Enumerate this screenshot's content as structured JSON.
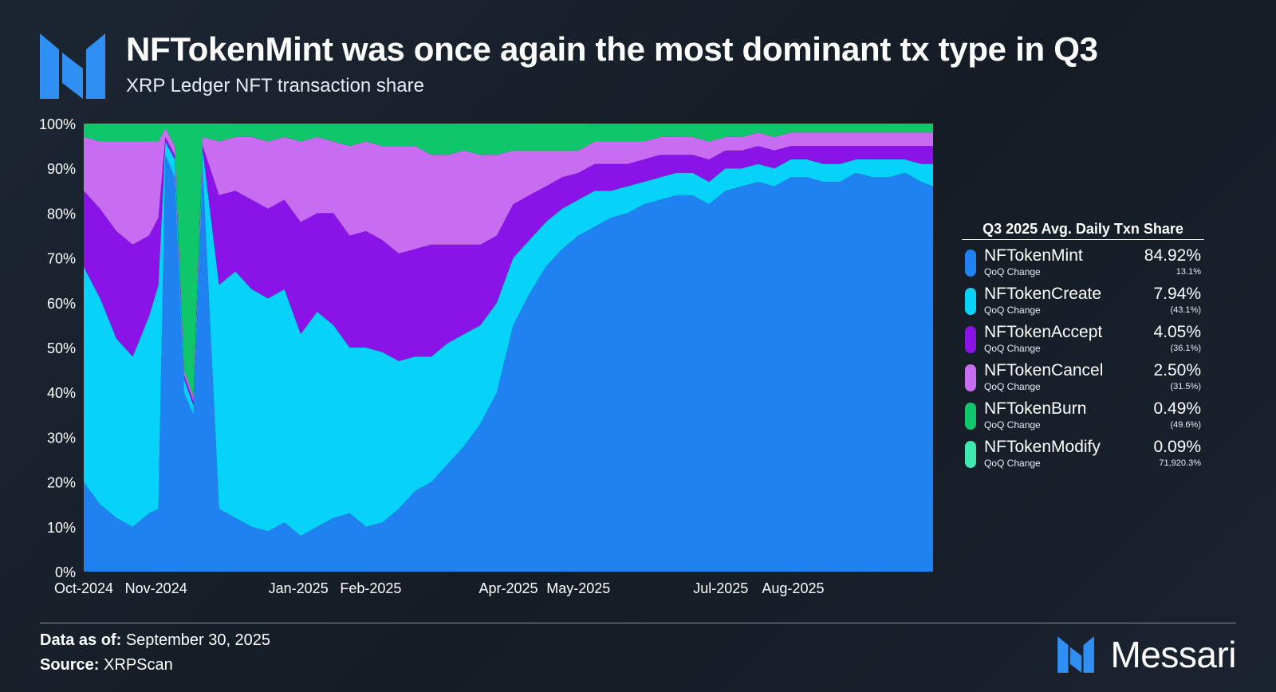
{
  "header": {
    "title": "NFTokenMint was once again the most dominant tx type in Q3",
    "subtitle": "XRP Ledger NFT transaction share"
  },
  "legend": {
    "title": "Q3 2025 Avg. Daily Txn Share",
    "qoq_label": "QoQ Change",
    "items": [
      {
        "name": "NFTokenMint",
        "value": "84.92%",
        "qoq": "13.1%",
        "color": "#1f82f0"
      },
      {
        "name": "NFTokenCreate",
        "value": "7.94%",
        "qoq": "(43.1%)",
        "color": "#07d2fa"
      },
      {
        "name": "NFTokenAccept",
        "value": "4.05%",
        "qoq": "(36.1%)",
        "color": "#8a14e8"
      },
      {
        "name": "NFTokenCancel",
        "value": "2.50%",
        "qoq": "(31.5%)",
        "color": "#c86cf2"
      },
      {
        "name": "NFTokenBurn",
        "value": "0.49%",
        "qoq": "(49.6%)",
        "color": "#10c66a"
      },
      {
        "name": "NFTokenModify",
        "value": "0.09%",
        "qoq": "71,920.3%",
        "color": "#3ee8b0"
      }
    ]
  },
  "footer": {
    "data_label": "Data as of:",
    "data_value": "September 30, 2025",
    "source_label": "Source:",
    "source_value": "XRPScan"
  },
  "brand": {
    "name": "Messari",
    "logo_icon": "messari-logo-icon"
  },
  "chart_data": {
    "type": "area",
    "stacked": true,
    "normalized": true,
    "ylim": [
      0,
      100
    ],
    "yticks": [
      "0%",
      "10%",
      "20%",
      "30%",
      "40%",
      "50%",
      "60%",
      "70%",
      "80%",
      "90%",
      "100%"
    ],
    "xlim": [
      "2024-10-01",
      "2025-09-30"
    ],
    "xticks": [
      "Oct-2024",
      "Nov-2024",
      "Jan-2025",
      "Feb-2025",
      "Apr-2025",
      "May-2025",
      "Jul-2025",
      "Aug-2025"
    ],
    "grid": false,
    "legend_position": "right",
    "x": [
      "2024-10-01",
      "2024-10-08",
      "2024-10-15",
      "2024-10-22",
      "2024-10-29",
      "2024-11-02",
      "2024-11-05",
      "2024-11-09",
      "2024-11-13",
      "2024-11-17",
      "2024-11-21",
      "2024-11-28",
      "2024-12-05",
      "2024-12-12",
      "2024-12-19",
      "2024-12-26",
      "2025-01-02",
      "2025-01-09",
      "2025-01-16",
      "2025-01-23",
      "2025-01-30",
      "2025-02-06",
      "2025-02-13",
      "2025-02-20",
      "2025-02-27",
      "2025-03-06",
      "2025-03-13",
      "2025-03-20",
      "2025-03-27",
      "2025-04-03",
      "2025-04-10",
      "2025-04-17",
      "2025-04-24",
      "2025-05-01",
      "2025-05-08",
      "2025-05-15",
      "2025-05-22",
      "2025-05-29",
      "2025-06-05",
      "2025-06-12",
      "2025-06-19",
      "2025-06-26",
      "2025-07-03",
      "2025-07-10",
      "2025-07-17",
      "2025-07-24",
      "2025-07-31",
      "2025-08-07",
      "2025-08-14",
      "2025-08-21",
      "2025-08-28",
      "2025-09-04",
      "2025-09-11",
      "2025-09-18",
      "2025-09-25",
      "2025-09-30"
    ],
    "series": [
      {
        "name": "NFTokenMint",
        "values": [
          20,
          15,
          12,
          10,
          13,
          14,
          93,
          88,
          40,
          35,
          90,
          14,
          12,
          10,
          9,
          11,
          8,
          10,
          12,
          13,
          10,
          11,
          14,
          18,
          20,
          24,
          28,
          33,
          40,
          55,
          62,
          68,
          72,
          75,
          77,
          79,
          80,
          82,
          83,
          84,
          84,
          82,
          85,
          86,
          87,
          86,
          88,
          88,
          87,
          87,
          89,
          88,
          88,
          89,
          87,
          86
        ]
      },
      {
        "name": "NFTokenCreate",
        "values": [
          48,
          46,
          40,
          38,
          44,
          50,
          3,
          4,
          3,
          2,
          4,
          50,
          55,
          53,
          52,
          52,
          45,
          48,
          43,
          37,
          40,
          38,
          33,
          30,
          28,
          27,
          25,
          22,
          20,
          15,
          12,
          10,
          9,
          8,
          8,
          6,
          6,
          5,
          5,
          5,
          5,
          5,
          5,
          4,
          4,
          4,
          4,
          4,
          4,
          4,
          3,
          4,
          4,
          3,
          4,
          5
        ]
      },
      {
        "name": "NFTokenAccept",
        "values": [
          17,
          20,
          24,
          25,
          18,
          15,
          1,
          1,
          1,
          1,
          1,
          20,
          18,
          20,
          20,
          20,
          25,
          22,
          25,
          25,
          26,
          25,
          24,
          24,
          25,
          22,
          20,
          18,
          15,
          12,
          10,
          8,
          7,
          6,
          6,
          6,
          5,
          5,
          5,
          4,
          4,
          5,
          4,
          4,
          4,
          4,
          3,
          3,
          4,
          4,
          3,
          3,
          3,
          3,
          4,
          4
        ]
      },
      {
        "name": "NFTokenCancel",
        "values": [
          12,
          15,
          20,
          23,
          21,
          17,
          2,
          2,
          1,
          1,
          2,
          12,
          12,
          14,
          15,
          14,
          18,
          17,
          16,
          20,
          20,
          21,
          24,
          23,
          20,
          20,
          21,
          20,
          18,
          12,
          10,
          8,
          6,
          5,
          5,
          5,
          5,
          4,
          4,
          4,
          4,
          4,
          3,
          3,
          3,
          3,
          3,
          3,
          3,
          3,
          3,
          3,
          3,
          3,
          3,
          3
        ]
      },
      {
        "name": "NFTokenBurn",
        "values": [
          3,
          4,
          4,
          4,
          4,
          4,
          1,
          5,
          55,
          61,
          3,
          4,
          3,
          3,
          4,
          3,
          4,
          3,
          4,
          5,
          4,
          5,
          5,
          5,
          7,
          7,
          6,
          7,
          7,
          6,
          6,
          6,
          6,
          6,
          4,
          4,
          4,
          4,
          3,
          3,
          3,
          4,
          3,
          3,
          2,
          3,
          2,
          2,
          2,
          2,
          2,
          2,
          2,
          2,
          2,
          2
        ]
      },
      {
        "name": "NFTokenModify",
        "values": [
          0,
          0,
          0,
          0,
          0,
          0,
          0,
          0,
          0,
          0,
          0,
          0,
          0,
          0,
          0,
          0,
          0,
          0,
          0,
          0,
          0,
          0,
          0,
          0,
          0,
          0,
          0,
          0,
          0,
          0,
          0,
          0,
          0,
          0,
          0,
          0,
          0,
          0,
          0,
          0,
          0,
          0,
          0,
          0,
          0,
          0,
          0,
          0,
          0,
          0,
          0,
          0,
          0,
          0,
          0,
          0
        ]
      }
    ]
  }
}
